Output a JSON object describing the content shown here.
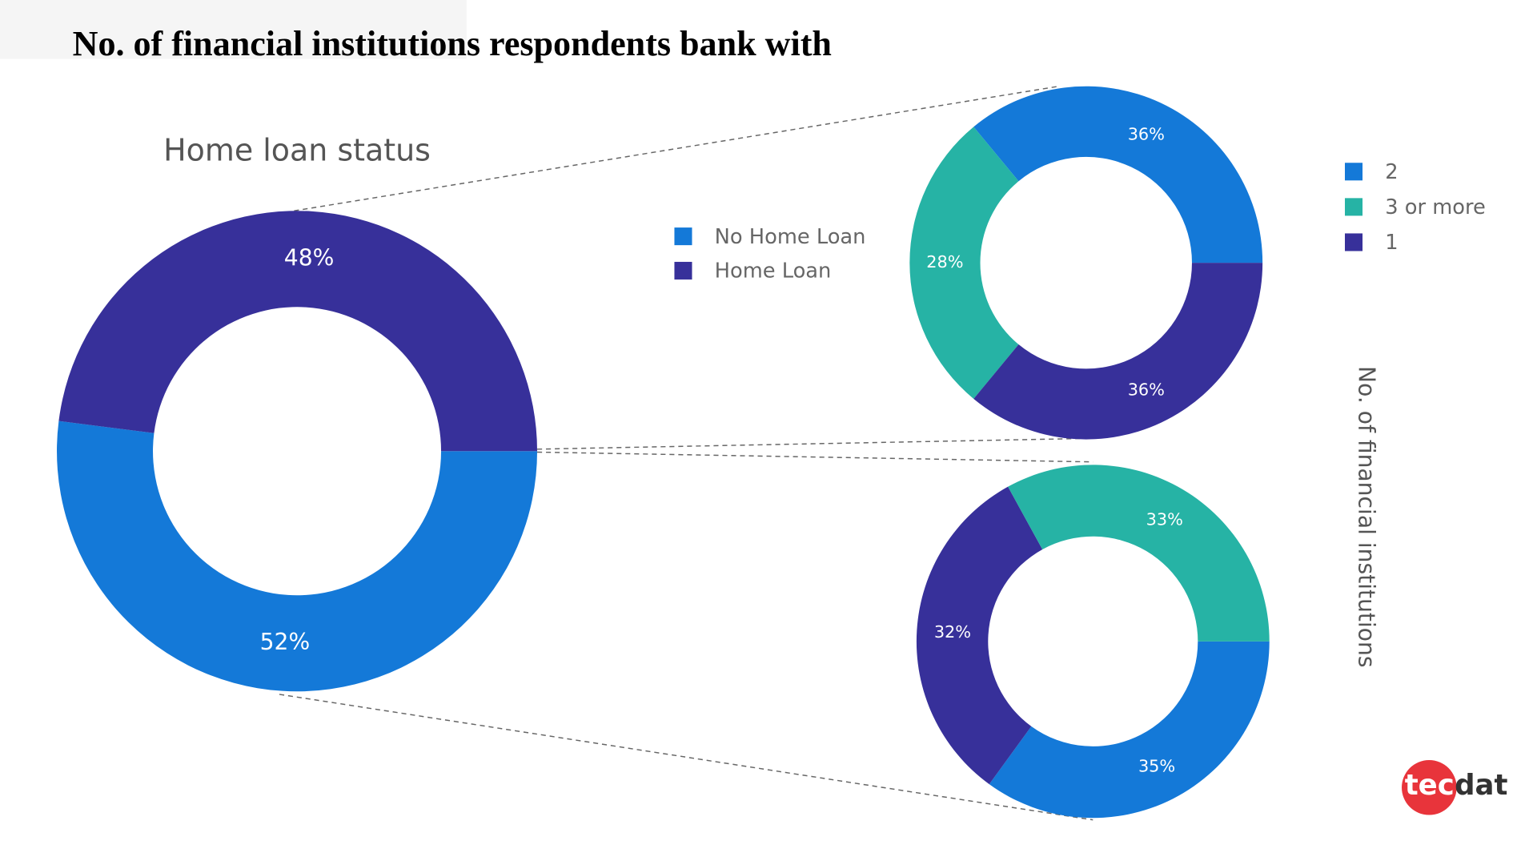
{
  "title": "No. of financial institutions respondents bank with",
  "side_label": "No. of financial institutions",
  "logo": {
    "left": "tec",
    "right": "dat"
  },
  "chart_data": [
    {
      "type": "donut",
      "title": "Home loan status",
      "categories": [
        "No Home Loan",
        "Home Loan"
      ],
      "values": [
        52,
        48
      ],
      "value_labels": [
        "52%",
        "48%"
      ],
      "colors": [
        "#1479d8",
        "#37309a"
      ]
    },
    {
      "type": "donut",
      "categories": [
        "2",
        "3 or more",
        "1"
      ],
      "values": [
        36,
        28,
        36
      ],
      "value_labels": [
        "36%",
        "28%",
        "36%"
      ],
      "colors": [
        "#1479d8",
        "#26b3a5",
        "#37309a"
      ]
    },
    {
      "type": "donut",
      "categories": [
        "2",
        "3 or more",
        "1"
      ],
      "values": [
        35,
        33,
        32
      ],
      "value_labels": [
        "35%",
        "33%",
        "32%"
      ],
      "colors": [
        "#1479d8",
        "#26b3a5",
        "#37309a"
      ]
    }
  ]
}
